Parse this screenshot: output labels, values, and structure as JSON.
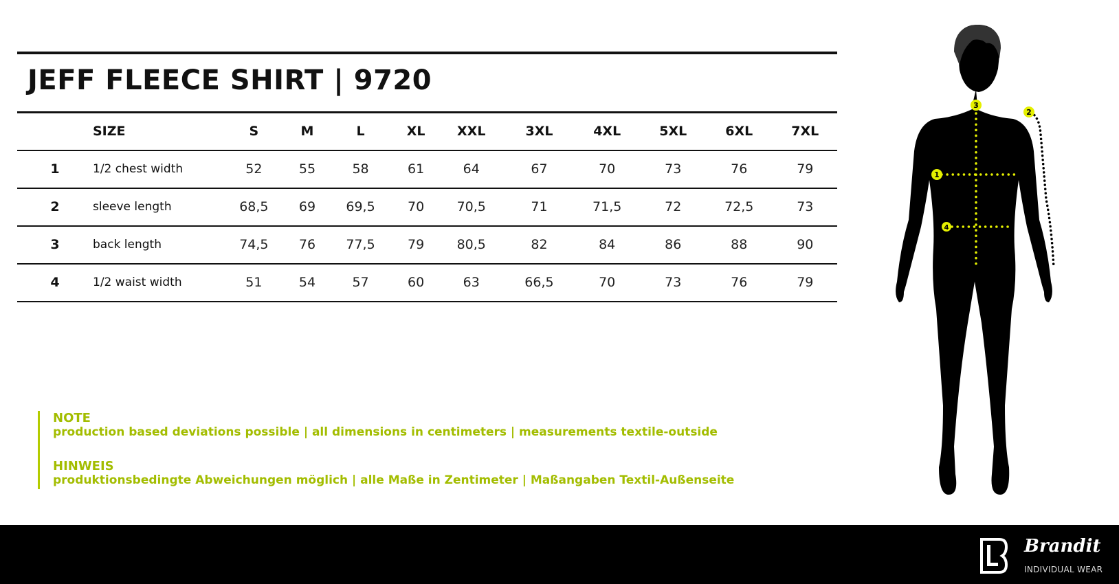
{
  "title": "JEFF FLEECE SHIRT | 9720",
  "table": {
    "size_label": "SIZE",
    "sizes": [
      "S",
      "M",
      "L",
      "XL",
      "XXL",
      "3XL",
      "4XL",
      "5XL",
      "6XL",
      "7XL"
    ],
    "rows": [
      {
        "num": "1",
        "label": "1/2 chest width",
        "values": [
          "52",
          "55",
          "58",
          "61",
          "64",
          "67",
          "70",
          "73",
          "76",
          "79"
        ]
      },
      {
        "num": "2",
        "label": "sleeve length",
        "values": [
          "68,5",
          "69",
          "69,5",
          "70",
          "70,5",
          "71",
          "71,5",
          "72",
          "72,5",
          "73"
        ]
      },
      {
        "num": "3",
        "label": "back length",
        "values": [
          "74,5",
          "76",
          "77,5",
          "79",
          "80,5",
          "82",
          "84",
          "86",
          "88",
          "90"
        ]
      },
      {
        "num": "4",
        "label": "1/2 waist width",
        "values": [
          "51",
          "54",
          "57",
          "60",
          "63",
          "66,5",
          "70",
          "73",
          "76",
          "79"
        ]
      }
    ]
  },
  "note": {
    "en_heading": "NOTE",
    "en_text": "production based deviations possible | all dimensions in centimeters | measurements textile-outside",
    "de_heading": "HINWEIS",
    "de_text": "produktionsbedingte Abweichungen möglich | alle Maße in Zentimeter | Maßangaben Textil-Außenseite"
  },
  "figure": {
    "markers": [
      "1",
      "2",
      "3",
      "4"
    ]
  },
  "footer": {
    "brand": "Brandit",
    "tagline": "INDIVIDUAL WEAR"
  },
  "colors": {
    "accent": "#a3bd00",
    "marker": "#e5f000",
    "footer_bg": "#000000"
  }
}
